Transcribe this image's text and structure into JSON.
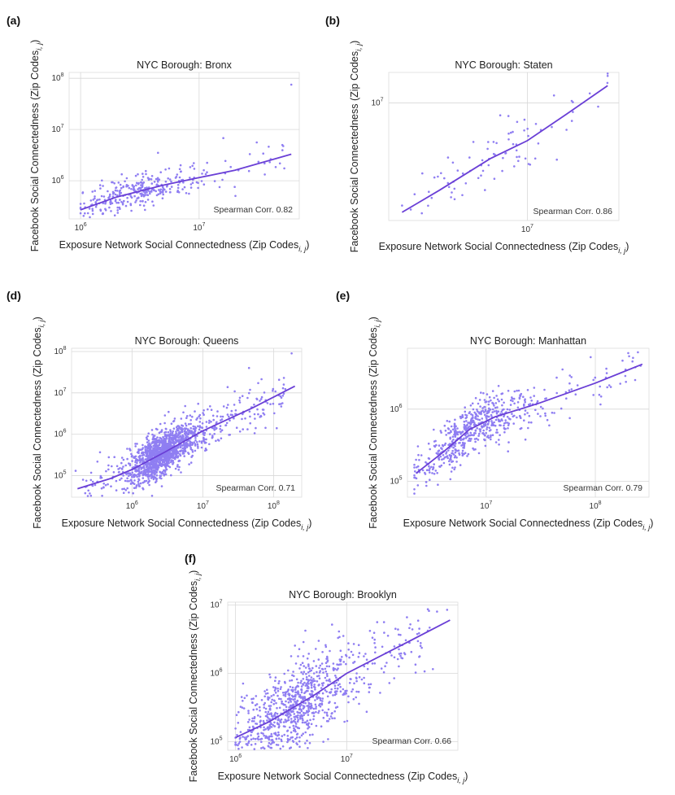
{
  "figure": {
    "point_color": "#8f7ef2",
    "line_color": "#6a3fd6"
  },
  "chart_data": [
    {
      "id": "a",
      "panel_label": "(a)",
      "type": "scatter",
      "title": "NYC Borough: Bronx",
      "xlabel_main": "Exposure Network Social Connectedness (Zip Codes",
      "xlabel_sub": "i, j",
      "xlabel_close": ")",
      "ylabel_main": "Facebook Social Connectedness (Zip Codes",
      "ylabel_sub": "i, j",
      "ylabel_close": ")",
      "xscale": "log",
      "yscale": "log",
      "xlim": [
        800000,
        70000000
      ],
      "ylim": [
        180000,
        130000000
      ],
      "xticks": [
        {
          "value": 1000000,
          "base": "10",
          "exp": "6"
        },
        {
          "value": 10000000,
          "base": "10",
          "exp": "7"
        }
      ],
      "yticks": [
        {
          "value": 1000000,
          "base": "10",
          "exp": "6"
        },
        {
          "value": 10000000,
          "base": "10",
          "exp": "7"
        },
        {
          "value": 100000000,
          "base": "10",
          "exp": "8"
        }
      ],
      "annotation": "Spearman Corr. 0.82",
      "fit_line": {
        "x": [
          1000000,
          2000000,
          5000000,
          10000000,
          20000000,
          60000000
        ],
        "y": [
          270000,
          480000,
          820000,
          1150000,
          1600000,
          3300000
        ]
      },
      "scatter": {
        "n": 340,
        "seed": 11,
        "x_min": 1000000,
        "x_max": 55000000,
        "x_mode": 2000000,
        "x_spread": 0.3,
        "fit": "fit_line",
        "noise": 0.17
      },
      "extra_points": [
        {
          "x": 60000000,
          "y": 75000000
        },
        {
          "x": 16000000,
          "y": 6800000
        },
        {
          "x": 4500000,
          "y": 3500000
        }
      ]
    },
    {
      "id": "b",
      "panel_label": "(b)",
      "type": "scatter",
      "title": "NYC Borough: Staten",
      "xlabel_main": "Exposure Network Social Connectedness (Zip Codes",
      "xlabel_sub": "i, j",
      "xlabel_close": ")",
      "ylabel_main": "Facebook Social Connectedness (Zip Codes",
      "ylabel_sub": "i, j",
      "ylabel_close": ")",
      "xscale": "log",
      "yscale": "log",
      "xlim": [
        1500000,
        35000000
      ],
      "ylim": [
        1300000,
        17000000
      ],
      "xticks": [
        {
          "value": 10000000,
          "base": "10",
          "exp": "7"
        }
      ],
      "yticks": [
        {
          "value": 10000000,
          "base": "10",
          "exp": "7"
        }
      ],
      "annotation": "Spearman Corr. 0.86",
      "fit_line": {
        "x": [
          1800000,
          3000000,
          6000000,
          10000000,
          17000000,
          30000000
        ],
        "y": [
          1500000,
          2200000,
          3800000,
          5200000,
          8200000,
          13500000
        ]
      },
      "scatter": {
        "n": 85,
        "seed": 23,
        "x_min": 1800000,
        "x_max": 30000000,
        "x_mode": 4500000,
        "x_spread": 0.28,
        "fit": "fit_line",
        "noise": 0.1
      },
      "extra_points": [
        {
          "x": 30000000,
          "y": 16000000
        }
      ]
    },
    {
      "id": "d",
      "panel_label": "(d)",
      "type": "scatter",
      "title": "NYC Borough: Queens",
      "xlabel_main": "Exposure Network Social Connectedness (Zip Codes",
      "xlabel_sub": "i, j",
      "xlabel_close": ")",
      "ylabel_main": "Facebook Social Connectedness (Zip Codes",
      "ylabel_sub": "i, j",
      "ylabel_close": ")",
      "xscale": "log",
      "yscale": "log",
      "xlim": [
        140000,
        250000000
      ],
      "ylim": [
        30000,
        120000000
      ],
      "xticks": [
        {
          "value": 1000000,
          "base": "10",
          "exp": "6"
        },
        {
          "value": 10000000,
          "base": "10",
          "exp": "7"
        },
        {
          "value": 100000000,
          "base": "10",
          "exp": "8"
        }
      ],
      "yticks": [
        {
          "value": 100000,
          "base": "10",
          "exp": "5"
        },
        {
          "value": 1000000,
          "base": "10",
          "exp": "6"
        },
        {
          "value": 10000000,
          "base": "10",
          "exp": "7"
        },
        {
          "value": 100000000,
          "base": "10",
          "exp": "8"
        }
      ],
      "annotation": "Spearman Corr. 0.71",
      "fit_line": {
        "x": [
          170000,
          500000,
          1000000,
          3000000,
          10000000,
          50000000,
          200000000
        ],
        "y": [
          48000,
          85000,
          140000,
          380000,
          1200000,
          4300000,
          14500000
        ]
      },
      "scatter": {
        "n": 1500,
        "seed": 37,
        "x_min": 200000,
        "x_max": 150000000,
        "x_mode": 2000000,
        "x_spread": 0.3,
        "fit": "fit_line",
        "noise": 0.27
      },
      "extra_points": [
        {
          "x": 180000000,
          "y": 90000000
        },
        {
          "x": 45000000,
          "y": 40000000
        },
        {
          "x": 160000,
          "y": 130000
        }
      ]
    },
    {
      "id": "e",
      "panel_label": "(e)",
      "type": "scatter",
      "title": "NYC Borough: Manhattan",
      "xlabel_main": "Exposure Network Social Connectedness (Zip Codes",
      "xlabel_sub": "i, j",
      "xlabel_close": ")",
      "ylabel_main": "Facebook Social Connectedness (Zip Codes",
      "ylabel_sub": "i, j",
      "ylabel_close": ")",
      "xscale": "log",
      "yscale": "log",
      "xlim": [
        1900000,
        310000000
      ],
      "ylim": [
        60000,
        7000000
      ],
      "xticks": [
        {
          "value": 10000000,
          "base": "10",
          "exp": "7"
        },
        {
          "value": 100000000,
          "base": "10",
          "exp": "8"
        }
      ],
      "yticks": [
        {
          "value": 100000,
          "base": "10",
          "exp": "5"
        },
        {
          "value": 1000000,
          "base": "10",
          "exp": "6"
        }
      ],
      "annotation": "Spearman Corr. 0.79",
      "fit_line": {
        "x": [
          2300000,
          4000000,
          7000000,
          12000000,
          30000000,
          100000000,
          270000000
        ],
        "y": [
          130000,
          250000,
          520000,
          780000,
          1200000,
          2300000,
          4200000
        ]
      },
      "scatter": {
        "n": 620,
        "seed": 53,
        "x_min": 2200000,
        "x_max": 250000000,
        "x_mode": 5500000,
        "x_spread": 0.28,
        "fit": "fit_line",
        "noise": 0.17
      },
      "extra_points": [
        {
          "x": 200000000,
          "y": 6000000
        },
        {
          "x": 260000000,
          "y": 4000000
        }
      ]
    },
    {
      "id": "f",
      "panel_label": "(f)",
      "type": "scatter",
      "title": "NYC Borough: Brooklyn",
      "xlabel_main": "Exposure Network Social Connectedness (Zip Codes",
      "xlabel_sub": "i, j",
      "xlabel_close": ")",
      "ylabel_main": "Facebook Social Connectedness (Zip Codes",
      "ylabel_sub": "i, j",
      "ylabel_close": ")",
      "xscale": "log",
      "yscale": "log",
      "xlim": [
        850000,
        100000000
      ],
      "ylim": [
        75000,
        11000000
      ],
      "xticks": [
        {
          "value": 1000000,
          "base": "10",
          "exp": "6"
        },
        {
          "value": 10000000,
          "base": "10",
          "exp": "7"
        }
      ],
      "yticks": [
        {
          "value": 100000,
          "base": "10",
          "exp": "5"
        },
        {
          "value": 1000000,
          "base": "10",
          "exp": "6"
        },
        {
          "value": 10000000,
          "base": "10",
          "exp": "7"
        }
      ],
      "annotation": "Spearman Corr. 0.66",
      "fit_line": {
        "x": [
          1000000,
          2000000,
          5000000,
          10000000,
          30000000,
          85000000
        ],
        "y": [
          115000,
          195000,
          470000,
          1000000,
          2500000,
          6000000
        ]
      },
      "scatter": {
        "n": 900,
        "seed": 71,
        "x_min": 1000000,
        "x_max": 60000000,
        "x_mode": 2500000,
        "x_spread": 0.32,
        "fit": "fit_line",
        "noise": 0.3
      },
      "extra_points": [
        {
          "x": 80000000,
          "y": 8500000
        },
        {
          "x": 65000000,
          "y": 8000000
        },
        {
          "x": 55000000,
          "y": 8200000
        },
        {
          "x": 45000000,
          "y": 4500000
        }
      ]
    }
  ]
}
